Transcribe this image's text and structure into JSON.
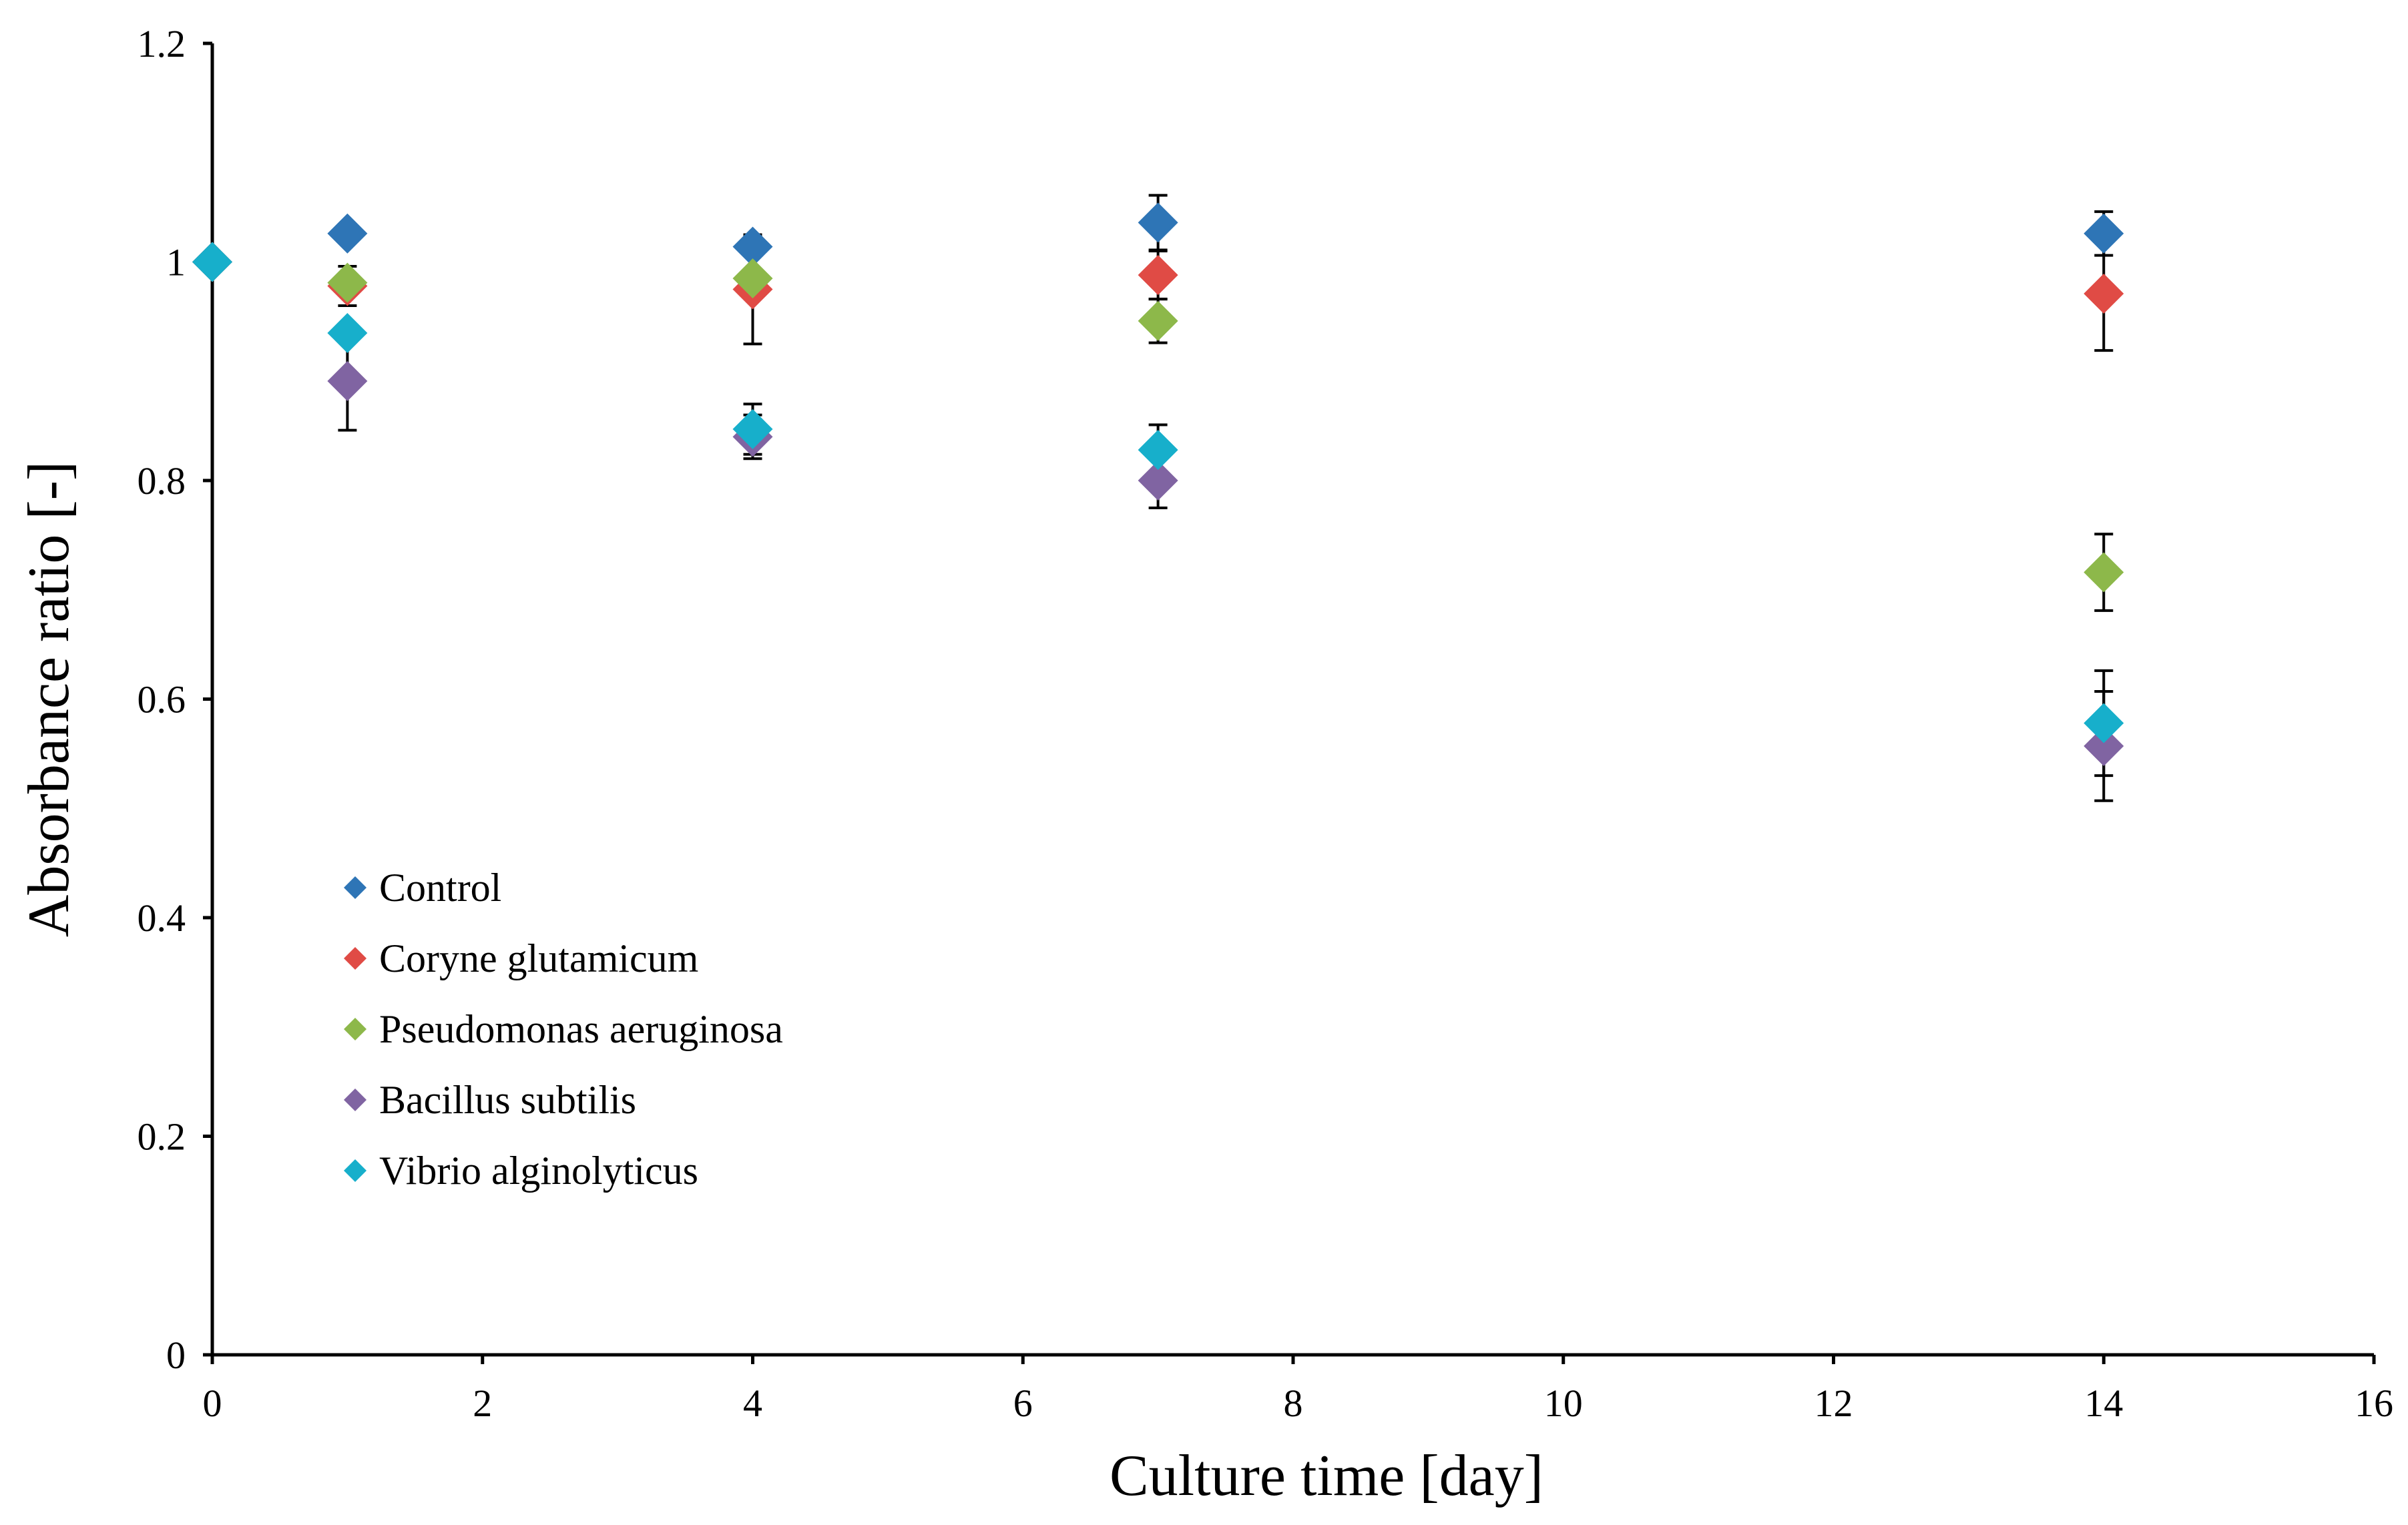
{
  "chart_data": {
    "type": "scatter",
    "title": "",
    "xlabel": "Culture time [day]",
    "ylabel": "Absorbance ratio [-]",
    "xlim": [
      0,
      16
    ],
    "ylim": [
      0,
      1.2
    ],
    "xticks": [
      0,
      2,
      4,
      6,
      8,
      10,
      12,
      14,
      16
    ],
    "yticks": [
      0,
      0.2,
      0.4,
      0.6,
      0.8,
      1.0,
      1.2
    ],
    "xtick_labels": [
      "0",
      "2",
      "4",
      "6",
      "8",
      "10",
      "12",
      "14",
      "16"
    ],
    "ytick_labels": [
      "0",
      "0.2",
      "0.4",
      "0.6",
      "0.8",
      "1",
      "1.2"
    ],
    "grid": false,
    "legend_position": "lower-left",
    "marker": "diamond",
    "series": [
      {
        "name": "Control",
        "color": "#2E75B6",
        "x": [
          0,
          1,
          4,
          7,
          14
        ],
        "y": [
          1.0,
          1.026,
          1.014,
          1.036,
          1.026
        ],
        "err": [
          0,
          0,
          0,
          0.025,
          0.02
        ]
      },
      {
        "name": "Coryne glutamicum",
        "color": "#E04B45",
        "x": [
          0,
          1,
          4,
          7,
          14
        ],
        "y": [
          1.0,
          0.978,
          0.975,
          0.988,
          0.971
        ],
        "err": [
          0,
          0.018,
          0.05,
          0.022,
          0.052
        ]
      },
      {
        "name": "Pseudomonas aeruginosa",
        "color": "#8DB84A",
        "x": [
          0,
          1,
          4,
          7,
          14
        ],
        "y": [
          1.0,
          0.981,
          0.985,
          0.946,
          0.716
        ],
        "err": [
          0,
          0,
          0,
          0.02,
          0.035
        ]
      },
      {
        "name": "Bacillus subtilis",
        "color": "#8064A2",
        "x": [
          0,
          1,
          4,
          7,
          14
        ],
        "y": [
          1.0,
          0.891,
          0.84,
          0.8,
          0.557
        ],
        "err": [
          0,
          0.045,
          0.02,
          0.025,
          0.05
        ]
      },
      {
        "name": "Vibrio alginolyticus",
        "color": "#17AFCB",
        "x": [
          0,
          1,
          4,
          7,
          14
        ],
        "y": [
          1.0,
          0.935,
          0.847,
          0.828,
          0.578
        ],
        "err": [
          0,
          0,
          0.023,
          0.023,
          0.048
        ]
      }
    ]
  }
}
